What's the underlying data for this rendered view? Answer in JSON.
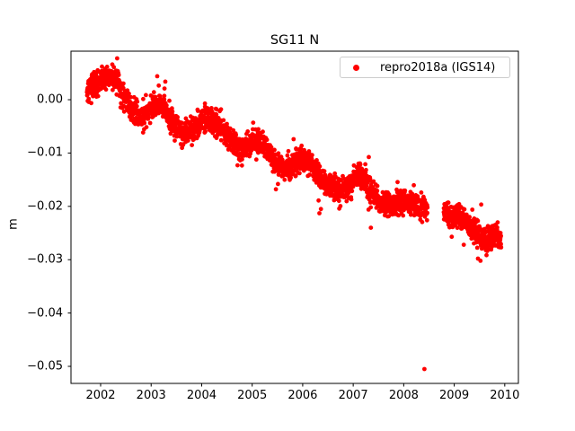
{
  "figure": {
    "background": "#ffffff",
    "text_color": "#000000"
  },
  "legend": {
    "label": "repro2018a (IGS14)",
    "marker_color": "#ff0000",
    "position": "upper right"
  },
  "chart_data": {
    "type": "scatter",
    "title": "SG11 N",
    "xlabel": "",
    "ylabel": "m",
    "xlim": [
      2001.413,
      2010.27
    ],
    "ylim": [
      -0.0532,
      0.0091
    ],
    "grid": false,
    "legend_position": "upper right",
    "xticks": {
      "values": [
        2002,
        2003,
        2004,
        2005,
        2006,
        2007,
        2008,
        2009,
        2010
      ],
      "labels": [
        "2002",
        "2003",
        "2004",
        "2005",
        "2006",
        "2007",
        "2008",
        "2009",
        "2010"
      ]
    },
    "yticks": {
      "values": [
        0.0,
        -0.01,
        -0.02,
        -0.03,
        -0.04,
        -0.05
      ],
      "labels": [
        "0.00",
        "−0.01",
        "−0.02",
        "−0.03",
        "−0.04",
        "−0.05"
      ]
    },
    "series": [
      {
        "name": "repro2018a (IGS14)",
        "color": "#ff0000",
        "marker": "dot",
        "marker_radius_px": 2.4,
        "x_start": 2001.73,
        "x_end": 2009.93,
        "sample_step_years": 0.0029,
        "noise_sigma_m": 0.00115,
        "heavy_tail_prob": 0.013,
        "heavy_tail_scale": 2.6,
        "seed": 12345,
        "gaps": [
          [
            2008.47,
            2008.79
          ]
        ],
        "trend_anchors": [
          [
            2001.73,
            0.0015
          ],
          [
            2001.85,
            0.0028
          ],
          [
            2002.0,
            0.0032
          ],
          [
            2002.15,
            0.0046
          ],
          [
            2002.3,
            0.0037
          ],
          [
            2002.45,
            0.001
          ],
          [
            2002.6,
            -0.0018
          ],
          [
            2002.75,
            -0.0035
          ],
          [
            2002.9,
            -0.0026
          ],
          [
            2003.05,
            -0.0012
          ],
          [
            2003.2,
            -0.0005
          ],
          [
            2003.35,
            -0.003
          ],
          [
            2003.5,
            -0.005
          ],
          [
            2003.65,
            -0.0066
          ],
          [
            2003.8,
            -0.006
          ],
          [
            2003.95,
            -0.0046
          ],
          [
            2004.1,
            -0.0038
          ],
          [
            2004.25,
            -0.0042
          ],
          [
            2004.4,
            -0.0055
          ],
          [
            2004.55,
            -0.007
          ],
          [
            2004.7,
            -0.0086
          ],
          [
            2004.85,
            -0.009
          ],
          [
            2005.0,
            -0.0082
          ],
          [
            2005.15,
            -0.0077
          ],
          [
            2005.3,
            -0.009
          ],
          [
            2005.45,
            -0.0115
          ],
          [
            2005.6,
            -0.013
          ],
          [
            2005.75,
            -0.0126
          ],
          [
            2005.9,
            -0.0116
          ],
          [
            2006.05,
            -0.0114
          ],
          [
            2006.2,
            -0.012
          ],
          [
            2006.35,
            -0.0148
          ],
          [
            2006.5,
            -0.016
          ],
          [
            2006.65,
            -0.0168
          ],
          [
            2006.8,
            -0.0166
          ],
          [
            2006.95,
            -0.0155
          ],
          [
            2007.1,
            -0.0138
          ],
          [
            2007.25,
            -0.0158
          ],
          [
            2007.4,
            -0.018
          ],
          [
            2007.55,
            -0.019
          ],
          [
            2007.7,
            -0.0196
          ],
          [
            2007.85,
            -0.0196
          ],
          [
            2008.0,
            -0.019
          ],
          [
            2008.15,
            -0.0196
          ],
          [
            2008.3,
            -0.02
          ],
          [
            2008.47,
            -0.0206
          ],
          [
            2008.79,
            -0.0208
          ],
          [
            2008.95,
            -0.0215
          ],
          [
            2009.1,
            -0.022
          ],
          [
            2009.25,
            -0.0232
          ],
          [
            2009.4,
            -0.0248
          ],
          [
            2009.55,
            -0.0262
          ],
          [
            2009.7,
            -0.0262
          ],
          [
            2009.82,
            -0.0255
          ],
          [
            2009.93,
            -0.0262
          ]
        ],
        "outliers": [
          [
            2008.41,
            -0.0505
          ],
          [
            2003.12,
            0.0044
          ],
          [
            2003.28,
            0.0034
          ],
          [
            2005.02,
            -0.0043
          ],
          [
            2005.47,
            -0.0168
          ],
          [
            2005.51,
            -0.0158
          ],
          [
            2005.82,
            -0.0074
          ],
          [
            2006.33,
            -0.0213
          ],
          [
            2006.36,
            -0.0205
          ],
          [
            2007.24,
            -0.0121
          ],
          [
            2007.35,
            -0.024
          ],
          [
            2009.47,
            -0.0298
          ],
          [
            2009.52,
            -0.0302
          ]
        ]
      }
    ]
  }
}
